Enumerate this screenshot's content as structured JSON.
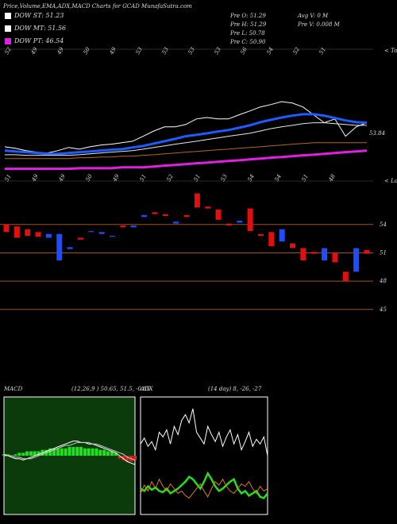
{
  "header": {
    "title": "Price,Volume,EMA,ADX,MACD Charts for GCAD MunafaSutra.com",
    "legend": [
      {
        "label": "DOW ST: 51.23",
        "color": "#ffffff"
      },
      {
        "label": "DOW MT: 51.56",
        "color": "#ffffff"
      },
      {
        "label": "DOW PT: 46.54",
        "color": "#e020e0"
      }
    ],
    "quote": [
      "Pre O: 51.29",
      "Pre H: 51.29",
      "Pre L: 50.78",
      "Pre C: 50.90",
      "Avg V: 0 M",
      "Pre V: 0.008 M"
    ]
  },
  "chart_data": [
    {
      "type": "line",
      "ylim": [
        37,
        83
      ],
      "annotation": "53.84",
      "tops_label": "< Tops",
      "lows_label": "< Lows",
      "top_labels": [
        "52",
        "49",
        "49",
        "50",
        "49",
        "53",
        "53",
        "53",
        "53",
        "56",
        "54",
        "52",
        "51"
      ],
      "low_labels": [
        "51",
        "49",
        "49",
        "50",
        "49",
        "51",
        "52",
        "51",
        "53",
        "54",
        "54",
        "51",
        "48"
      ],
      "series": [
        {
          "color": "#ffffff",
          "width": 1,
          "values": [
            49.2,
            48.7,
            47.9,
            47.4,
            47.1,
            47.9,
            49.0,
            48.4,
            49.2,
            49.8,
            50.1,
            50.6,
            51.1,
            52.8,
            54.6,
            56.0,
            56.0,
            56.8,
            58.7,
            59.2,
            58.7,
            58.7,
            60.1,
            61.4,
            62.8,
            63.6,
            64.6,
            64.1,
            62.8,
            60.1,
            57.4,
            58.7,
            52.8,
            56.0,
            57.4
          ]
        },
        {
          "color": "#1f5cff",
          "width": 3,
          "values": [
            47.9,
            47.6,
            47.4,
            47.1,
            46.8,
            46.8,
            47.1,
            47.4,
            47.6,
            47.9,
            48.2,
            48.4,
            49.0,
            49.5,
            50.3,
            51.1,
            51.9,
            52.8,
            53.3,
            53.8,
            54.4,
            54.9,
            55.7,
            56.5,
            57.6,
            58.4,
            59.2,
            59.8,
            60.3,
            60.3,
            59.8,
            59.0,
            58.2,
            57.6,
            57.4
          ]
        },
        {
          "color": "#e8e8e8",
          "width": 1,
          "values": [
            46.5,
            46.5,
            46.3,
            46.3,
            46.3,
            46.3,
            46.3,
            46.5,
            46.8,
            47.1,
            47.4,
            47.6,
            47.9,
            48.4,
            49.0,
            49.5,
            50.1,
            50.6,
            51.1,
            51.7,
            52.2,
            52.8,
            53.3,
            53.8,
            54.6,
            55.4,
            56.0,
            56.5,
            57.1,
            57.4,
            57.4,
            57.1,
            56.8,
            56.5,
            56.5
          ]
        },
        {
          "color": "#b06a20",
          "width": 1,
          "values": [
            45.2,
            45.2,
            45.2,
            45.2,
            45.2,
            45.2,
            45.2,
            45.5,
            45.5,
            45.7,
            45.7,
            46.0,
            46.0,
            46.3,
            46.5,
            46.8,
            47.1,
            47.4,
            47.6,
            47.9,
            48.2,
            48.4,
            48.7,
            49.0,
            49.2,
            49.5,
            49.8,
            50.1,
            50.3,
            50.6,
            50.6,
            50.6,
            50.6,
            50.6,
            50.6
          ]
        },
        {
          "color": "#e020e0",
          "width": 3,
          "values": [
            41.7,
            41.7,
            41.7,
            41.7,
            41.7,
            41.7,
            41.7,
            41.9,
            41.9,
            41.9,
            41.9,
            42.2,
            42.2,
            42.2,
            42.5,
            42.8,
            43.0,
            43.3,
            43.6,
            43.8,
            44.1,
            44.4,
            44.6,
            44.9,
            45.2,
            45.5,
            45.7,
            46.0,
            46.3,
            46.5,
            46.8,
            47.1,
            47.4,
            47.6,
            47.9
          ]
        }
      ]
    },
    {
      "type": "candlestick",
      "ylim": [
        43.3,
        57.6
      ],
      "yticks": [
        54,
        51,
        48,
        45
      ],
      "up_color": "#1f4cff",
      "down_color": "#e01010",
      "line_color": "#a0521a",
      "open": [
        54.0,
        53.8,
        53.5,
        53.2,
        52.6,
        50.2,
        51.4,
        52.6,
        53.2,
        53.0,
        52.7,
        53.9,
        53.7,
        54.8,
        55.3,
        55.1,
        54.1,
        55.0,
        57.3,
        55.9,
        55.6,
        54.1,
        54.2,
        55.7,
        53.0,
        53.2,
        52.2,
        52.0,
        51.5,
        51.1,
        50.2,
        51.0,
        49.0,
        49.0,
        51.3
      ],
      "close": [
        53.2,
        52.6,
        52.8,
        52.7,
        53.0,
        53.0,
        51.6,
        52.4,
        53.3,
        53.2,
        52.8,
        53.7,
        53.9,
        55.0,
        55.1,
        54.9,
        54.3,
        54.8,
        55.8,
        55.7,
        54.5,
        53.9,
        54.4,
        53.3,
        52.8,
        51.7,
        53.5,
        51.5,
        50.2,
        50.9,
        51.5,
        50.0,
        48.0,
        51.5,
        50.9
      ]
    },
    {
      "type": "macd",
      "title": "MACD",
      "subtitle": "(12,26,9 ) 50.65, 51.5, -0.85",
      "ylim": [
        -4,
        4
      ],
      "bg": "#0b3a0b",
      "series": [
        {
          "color": "#ffffff",
          "values": [
            0.1,
            0.0,
            -0.1,
            -0.2,
            -0.2,
            -0.3,
            -0.2,
            -0.1,
            0.0,
            0.1,
            0.2,
            0.3,
            0.4,
            0.5,
            0.6,
            0.7,
            0.8,
            0.9,
            1.0,
            1.0,
            0.9,
            0.9,
            0.8,
            0.8,
            0.7,
            0.6,
            0.5,
            0.4,
            0.3,
            0.2,
            0.0,
            -0.2,
            -0.4,
            -0.5,
            -0.6
          ]
        },
        {
          "color": "#cccccc",
          "values": [
            0.0,
            0.0,
            0.0,
            -0.1,
            -0.1,
            -0.2,
            -0.2,
            -0.2,
            -0.1,
            0.0,
            0.1,
            0.2,
            0.3,
            0.4,
            0.5,
            0.6,
            0.7,
            0.7,
            0.8,
            0.9,
            0.9,
            0.9,
            0.9,
            0.8,
            0.8,
            0.7,
            0.6,
            0.5,
            0.4,
            0.3,
            0.2,
            0.1,
            -0.1,
            -0.2,
            -0.3
          ]
        }
      ],
      "histogram": {
        "up_color": "#20e020",
        "down_color": "#e02020",
        "values": [
          0.1,
          0.1,
          0.0,
          0.1,
          0.2,
          0.2,
          0.3,
          0.3,
          0.3,
          0.3,
          0.4,
          0.4,
          0.5,
          0.5,
          0.5,
          0.5,
          0.5,
          0.6,
          0.6,
          0.6,
          0.6,
          0.5,
          0.5,
          0.5,
          0.5,
          0.4,
          0.4,
          0.3,
          0.3,
          0.2,
          -0.2,
          -0.3,
          -0.4,
          -0.4,
          -0.3
        ]
      }
    },
    {
      "type": "adx",
      "title": "ADX",
      "subtitle": "(14 day) 8, -26, -27",
      "ylim": [
        0,
        100
      ],
      "bg": "#000000",
      "series": [
        {
          "color": "#ffffff",
          "width": 1,
          "values": [
            60,
            65,
            58,
            62,
            55,
            70,
            66,
            72,
            60,
            75,
            68,
            80,
            85,
            78,
            90,
            70,
            65,
            60,
            75,
            68,
            62,
            70,
            58,
            66,
            72,
            60,
            68,
            55,
            62,
            70,
            58,
            64,
            60,
            66,
            50
          ]
        },
        {
          "color": "#20e020",
          "width": 2.5,
          "values": [
            22,
            20,
            24,
            21,
            23,
            20,
            19,
            22,
            18,
            20,
            22,
            25,
            28,
            32,
            30,
            26,
            22,
            28,
            35,
            30,
            24,
            20,
            22,
            25,
            28,
            30,
            22,
            18,
            20,
            16,
            18,
            20,
            15,
            14,
            18
          ]
        },
        {
          "color": "#e07a10",
          "width": 1,
          "values": [
            18,
            25,
            20,
            28,
            22,
            30,
            24,
            20,
            26,
            22,
            18,
            20,
            16,
            14,
            18,
            22,
            26,
            20,
            15,
            22,
            28,
            25,
            30,
            24,
            20,
            18,
            22,
            26,
            24,
            28,
            22,
            18,
            24,
            20,
            22
          ]
        }
      ]
    }
  ]
}
